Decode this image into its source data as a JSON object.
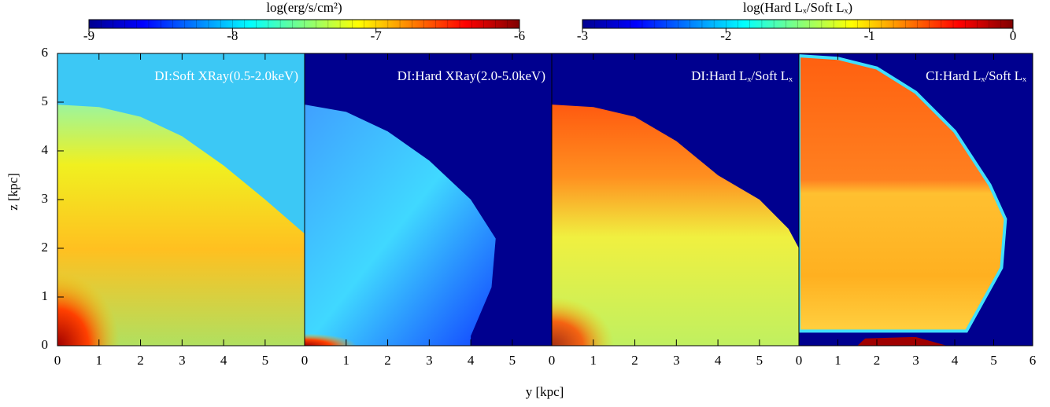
{
  "chart_data": {
    "type": "heatmap",
    "xlabel": "y [kpc]",
    "ylabel": "z [kpc]",
    "ylim": [
      0,
      6
    ],
    "yticks": [
      0,
      1,
      2,
      3,
      4,
      5,
      6
    ],
    "colormap": [
      "#00008f",
      "#0000ff",
      "#0080ff",
      "#00ffff",
      "#80ff80",
      "#ffff00",
      "#ff8000",
      "#ff0000",
      "#800000"
    ],
    "colorbars": [
      {
        "label": "log(erg/s/cm²)",
        "xlim": [
          -9,
          -6
        ],
        "xticks": [
          -9,
          -8,
          -7,
          -6
        ]
      },
      {
        "label": "log(Hard Lₓ/Soft Lₓ)",
        "xlim": [
          -3,
          0
        ],
        "xticks": [
          -3,
          -2,
          -1,
          0
        ]
      }
    ],
    "panels": [
      {
        "title": "DI:Soft XRay(0.5-2.0keV)",
        "xlim": [
          0,
          5.95
        ],
        "xticks": [
          0,
          1,
          2,
          3,
          4,
          5
        ]
      },
      {
        "title": "DI:Hard XRay(2.0-5.0keV)",
        "xlim": [
          0,
          5.95
        ],
        "xticks": [
          0,
          1,
          2,
          3,
          4,
          5
        ]
      },
      {
        "title": "DI:Hard Lₓ/Soft Lₓ",
        "xlim": [
          0,
          5.95
        ],
        "xticks": [
          0,
          1,
          2,
          3,
          4,
          5
        ]
      },
      {
        "title": "CI:Hard Lₓ/Soft Lₓ",
        "xlim": [
          0,
          6
        ],
        "xticks": [
          0,
          1,
          2,
          3,
          4,
          5,
          6
        ]
      }
    ]
  }
}
